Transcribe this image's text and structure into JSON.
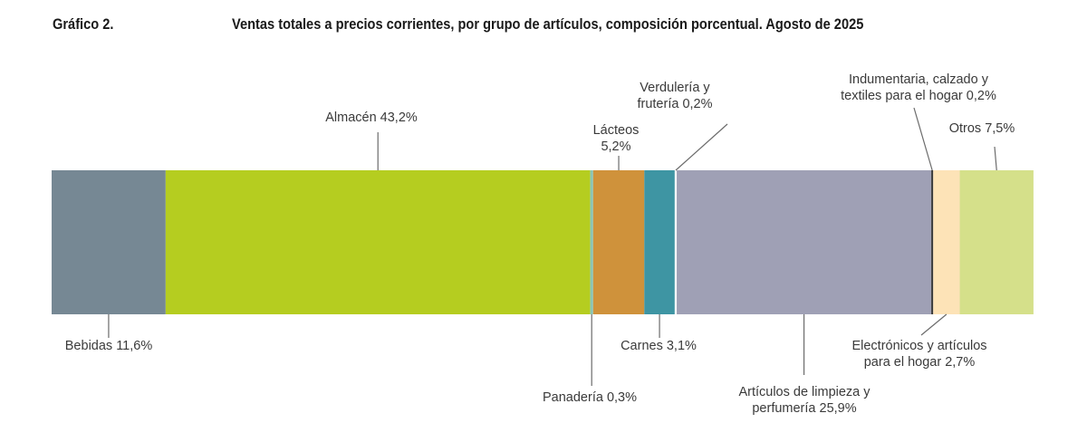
{
  "header": {
    "figure_number": "Gráfico 2.",
    "title": "Ventas totales a precios corrientes, por grupo de artículos, composición porcentual. Agosto de 2025"
  },
  "chart_data": {
    "type": "bar",
    "orientation": "horizontal-stacked",
    "title": "Ventas totales a precios corrientes, por grupo de artículos, composición porcentual. Agosto de 2025",
    "unit": "%",
    "total": 100,
    "segments": [
      {
        "name": "Bebidas",
        "value": 11.6,
        "color": "#768894",
        "label": [
          "Bebidas 11,6%"
        ]
      },
      {
        "name": "Almacén",
        "value": 43.2,
        "color": "#b5cd20",
        "label": [
          "Almacén 43,2%"
        ]
      },
      {
        "name": "Panadería",
        "value": 0.3,
        "color": "#8cc5b5",
        "label": [
          "Panadería 0,3%"
        ]
      },
      {
        "name": "Lácteos",
        "value": 5.2,
        "color": "#cf923b",
        "label": [
          "Lácteos",
          "5,2%"
        ]
      },
      {
        "name": "Carnes",
        "value": 3.1,
        "color": "#3e95a3",
        "label": [
          "Carnes 3,1%"
        ]
      },
      {
        "name": "Verdulería y frutería",
        "value": 0.2,
        "color": "#ffffff",
        "label": [
          "Verdulería y",
          "frutería 0,2%"
        ]
      },
      {
        "name": "Artículos de limpieza y perfumería",
        "value": 25.9,
        "color": "#9fa0b5",
        "label": [
          "Artículos de limpieza y",
          "perfumería 25,9%"
        ]
      },
      {
        "name": "Indumentaria, calzado y textiles para el hogar",
        "value": 0.2,
        "color": "#3a3a3a",
        "label": [
          "Indumentaria, calzado y",
          "textiles para el hogar 0,2%"
        ]
      },
      {
        "name": "Electrónicos y artículos para el hogar",
        "value": 2.7,
        "color": "#fde3b7",
        "label": [
          "Electrónicos y artículos",
          "para el hogar 2,7%"
        ]
      },
      {
        "name": "Otros",
        "value": 7.5,
        "color": "#d5e08a",
        "label": [
          "Otros 7,5%"
        ]
      }
    ]
  }
}
